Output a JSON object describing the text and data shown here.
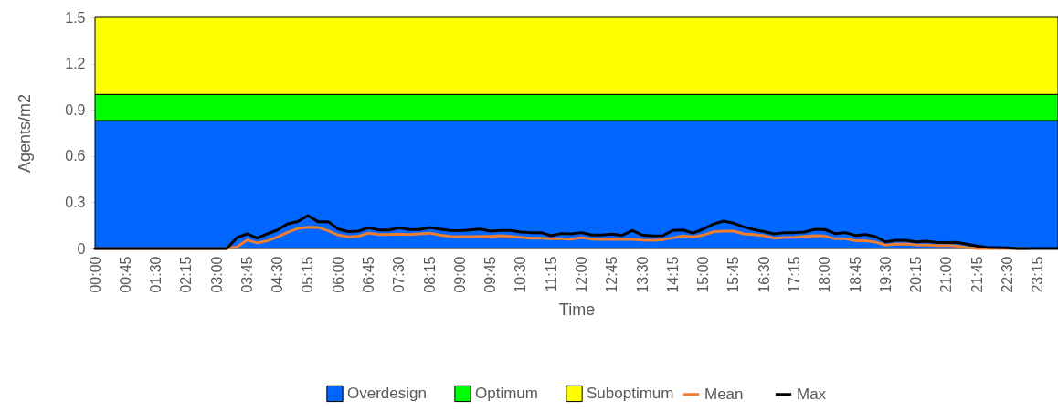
{
  "chart_data": {
    "type": "line",
    "categories": [
      "00:00",
      null,
      null,
      "00:45",
      null,
      null,
      "01:30",
      null,
      null,
      "02:15",
      null,
      null,
      "03:00",
      null,
      null,
      "03:45",
      null,
      null,
      "04:30",
      null,
      null,
      "05:15",
      null,
      null,
      "06:00",
      null,
      null,
      "06:45",
      null,
      null,
      "07:30",
      null,
      null,
      "08:15",
      null,
      null,
      "09:00",
      null,
      null,
      "09:45",
      null,
      null,
      "10:30",
      null,
      null,
      "11:15",
      null,
      null,
      "12:00",
      null,
      null,
      "12:45",
      null,
      null,
      "13:30",
      null,
      null,
      "14:15",
      null,
      null,
      "15:00",
      null,
      null,
      "15:45",
      null,
      null,
      "16:30",
      null,
      null,
      "17:15",
      null,
      null,
      "18:00",
      null,
      null,
      "18:45",
      null,
      null,
      "19:30",
      null,
      null,
      "20:15",
      null,
      null,
      "21:00",
      null,
      null,
      "21:45",
      null,
      null,
      "22:30",
      null,
      null,
      "23:15",
      null,
      null
    ],
    "series": [
      {
        "name": "Mean",
        "color": "#ed7d31",
        "values": [
          0,
          0,
          0,
          0,
          0,
          0,
          0,
          0,
          0,
          0,
          0,
          0,
          0,
          0,
          0.01,
          0.055,
          0.036,
          0.05,
          0.075,
          0.105,
          0.13,
          0.138,
          0.137,
          0.115,
          0.087,
          0.075,
          0.08,
          0.1,
          0.09,
          0.09,
          0.094,
          0.09,
          0.095,
          0.1,
          0.087,
          0.079,
          0.077,
          0.077,
          0.079,
          0.079,
          0.083,
          0.079,
          0.073,
          0.067,
          0.067,
          0.063,
          0.063,
          0.061,
          0.071,
          0.061,
          0.059,
          0.061,
          0.059,
          0.059,
          0.055,
          0.053,
          0.057,
          0.069,
          0.081,
          0.075,
          0.087,
          0.108,
          0.113,
          0.113,
          0.095,
          0.09,
          0.083,
          0.067,
          0.071,
          0.073,
          0.079,
          0.083,
          0.081,
          0.063,
          0.063,
          0.051,
          0.051,
          0.041,
          0.022,
          0.028,
          0.03,
          0.024,
          0.022,
          0.02,
          0.02,
          0.016,
          0.006,
          0,
          0,
          0,
          0,
          0,
          0,
          null,
          null,
          null
        ]
      },
      {
        "name": "Max",
        "color": "#000000",
        "values": [
          0,
          0,
          0,
          0,
          0,
          0,
          0,
          0,
          0,
          0,
          0,
          0,
          0,
          0,
          0.07,
          0.095,
          0.067,
          0.095,
          0.12,
          0.16,
          0.175,
          0.213,
          0.174,
          0.174,
          0.126,
          0.11,
          0.113,
          0.135,
          0.12,
          0.12,
          0.135,
          0.123,
          0.123,
          0.136,
          0.126,
          0.117,
          0.115,
          0.12,
          0.126,
          0.113,
          0.117,
          0.117,
          0.107,
          0.103,
          0.103,
          0.083,
          0.097,
          0.095,
          0.103,
          0.087,
          0.087,
          0.093,
          0.085,
          0.117,
          0.087,
          0.081,
          0.083,
          0.117,
          0.12,
          0.1,
          0.126,
          0.158,
          0.178,
          0.164,
          0.14,
          0.123,
          0.11,
          0.095,
          0.103,
          0.103,
          0.107,
          0.124,
          0.123,
          0.097,
          0.103,
          0.085,
          0.091,
          0.077,
          0.043,
          0.053,
          0.053,
          0.043,
          0.047,
          0.04,
          0.038,
          0.04,
          0.028,
          0.016,
          0.008,
          0.006,
          0.005,
          0,
          0,
          0,
          0,
          0
        ]
      }
    ],
    "bands": [
      {
        "axis": "y",
        "from": 0,
        "to": 0.83,
        "label": "Overdesign",
        "color": "#0066ff"
      },
      {
        "axis": "y",
        "from": 0.83,
        "to": 1.0,
        "label": "Optimum",
        "color": "#00ff00"
      },
      {
        "axis": "y",
        "from": 1.0,
        "to": 1.5,
        "label": "Suboptimum",
        "color": "#ffff00"
      }
    ],
    "xlabel": "Time",
    "ylabel": "Agents/m2",
    "ylim": [
      0,
      1.5
    ],
    "yticks": [
      0,
      0.3,
      0.6,
      0.9,
      1.2,
      1.5
    ],
    "grid": false,
    "legend": "bottom"
  }
}
